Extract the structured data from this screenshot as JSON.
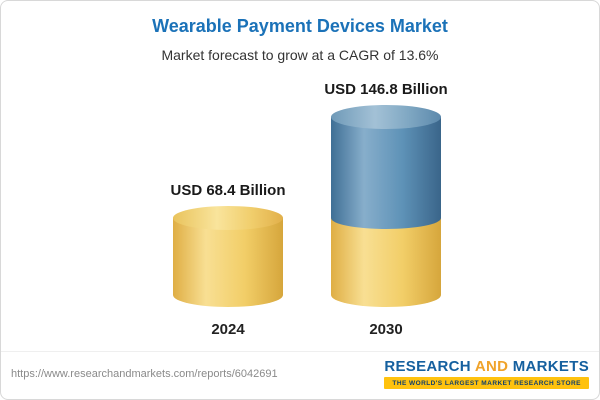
{
  "header": {
    "title": "Wearable Payment Devices Market",
    "subtitle": "Market forecast to grow at a CAGR of 13.6%"
  },
  "chart_data": {
    "type": "bar",
    "bar_style": "3d-cylinder",
    "categories": [
      "2024",
      "2030"
    ],
    "values": [
      68.4,
      146.8
    ],
    "value_labels": [
      "USD 68.4 Billion",
      "USD 146.8 Billion"
    ],
    "unit": "USD Billion",
    "cagr_percent": 13.6,
    "title": "Wearable Payment Devices Market",
    "subtitle": "Market forecast to grow at a CAGR of 13.6%",
    "legend": "none",
    "gridlines": false,
    "colors": {
      "base_segment": "#F2CE68",
      "growth_segment": "#5E92B7"
    },
    "notes": "2030 cylinder is two-tone: lower gold segment equals the 2024 value, upper blue segment is the growth portion"
  },
  "footer": {
    "url": "https://www.researchandmarkets.com/reports/6042691",
    "brand_research": "RESEARCH",
    "brand_and": "AND",
    "brand_markets": "MARKETS",
    "tagline": "THE WORLD'S LARGEST MARKET RESEARCH STORE"
  }
}
